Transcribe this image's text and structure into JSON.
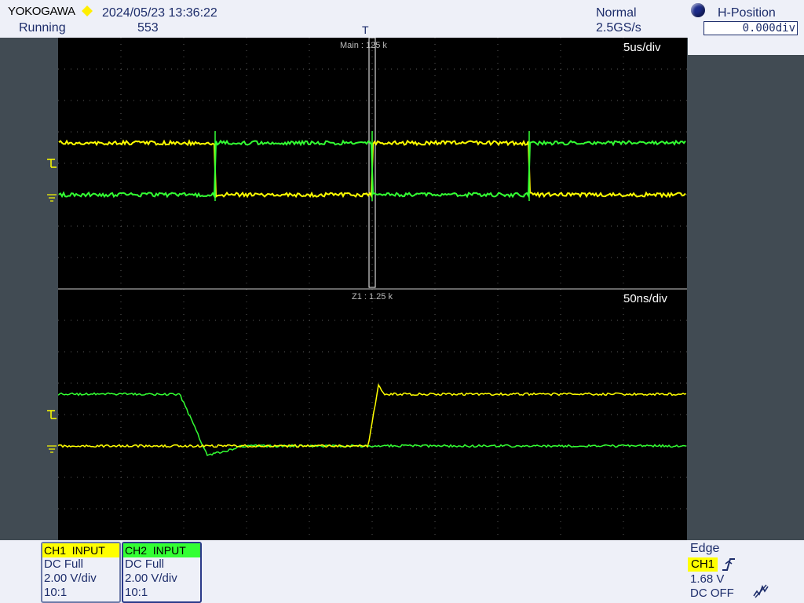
{
  "header": {
    "brand": "YOKOGAWA",
    "datetime": "2024/05/23 13:36:22",
    "run_state": "Running",
    "acq_count": "553",
    "trigger_mode": "Normal",
    "sample_rate": "2.5GS/s",
    "trigger_marker": "T"
  },
  "hposition": {
    "label": "H-Position",
    "value": "0.000div"
  },
  "main_window": {
    "label": "Main : 125 k",
    "timebase": "5us/div"
  },
  "zoom_window": {
    "label": "Z1 : 1.25 k",
    "timebase": "50ns/div"
  },
  "channels": [
    {
      "name": "CH1",
      "mode": "INPUT",
      "coupling": "DC Full",
      "scale": "2.00 V/div",
      "probe": "10:1",
      "color": "#ffff00"
    },
    {
      "name": "CH2",
      "mode": "INPUT",
      "coupling": "DC Full",
      "scale": "2.00 V/div",
      "probe": "10:1",
      "color": "#33ff33"
    }
  ],
  "trigger": {
    "type": "Edge",
    "source": "CH1",
    "level": "1.68 V",
    "hf_reject": "DC OFF"
  },
  "colors": {
    "ch1": "#ffff00",
    "ch2": "#33ff33",
    "screen_bg": "#000000",
    "panel_bg": "#eef0f8",
    "text": "#1d2d6b"
  },
  "icons": {
    "status_indicator": "yellow-diamond",
    "trigger_slope": "rising-edge-icon",
    "noise_filter": "noise-filter-icon",
    "hposition_knob": "knob-icon"
  }
}
